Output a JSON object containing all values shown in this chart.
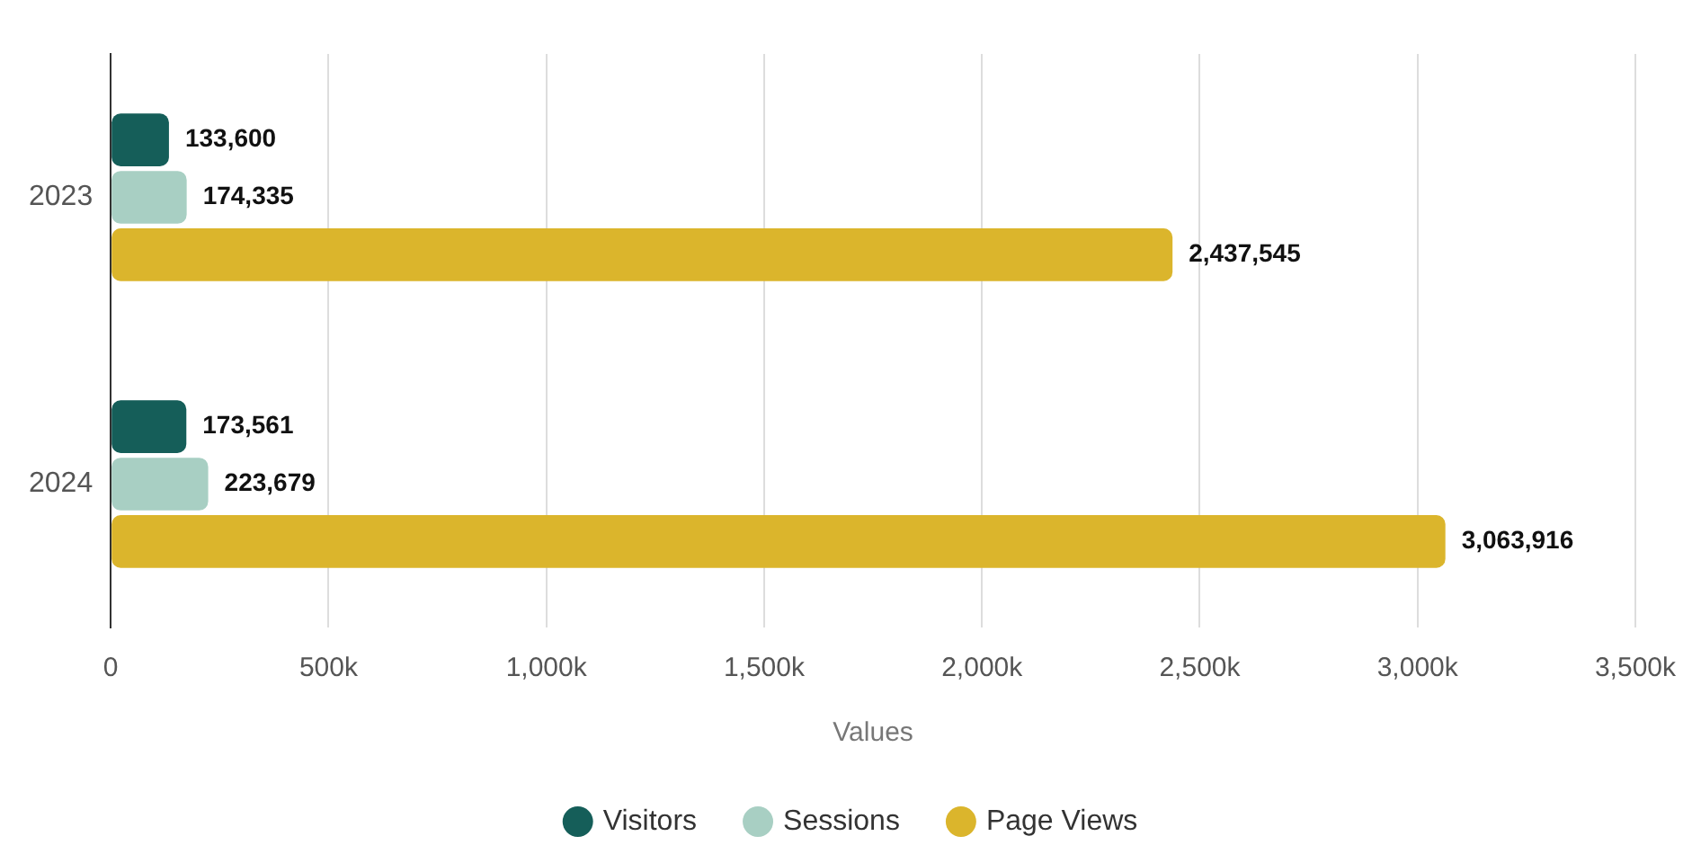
{
  "chart_data": {
    "type": "bar",
    "orientation": "horizontal",
    "xlabel": "Values",
    "categories": [
      "2023",
      "2024"
    ],
    "series": [
      {
        "name": "Visitors",
        "color": "#155e59",
        "values": [
          133600,
          173561
        ],
        "value_labels": [
          "133,600",
          "173,561"
        ]
      },
      {
        "name": "Sessions",
        "color": "#a8cfc3",
        "values": [
          174335,
          223679
        ],
        "value_labels": [
          "174,335",
          "223,679"
        ]
      },
      {
        "name": "Page Views",
        "color": "#dbb52c",
        "values": [
          2437545,
          3063916
        ],
        "value_labels": [
          "2,437,545",
          "3,063,916"
        ]
      }
    ],
    "xlim": [
      0,
      3500000
    ],
    "xticks": [
      0,
      {
        "value": 500000,
        "label": "500k"
      },
      {
        "value": 1000000,
        "label": "1,000k"
      },
      {
        "value": 1500000,
        "label": "1,500k"
      },
      {
        "value": 2000000,
        "label": "2,000k"
      },
      {
        "value": 2500000,
        "label": "2,500k"
      },
      {
        "value": 3000000,
        "label": "3,000k"
      },
      {
        "value": 3500000,
        "label": "3,500k"
      }
    ],
    "grid": "x",
    "legend": "bottom",
    "marker": "circle"
  }
}
